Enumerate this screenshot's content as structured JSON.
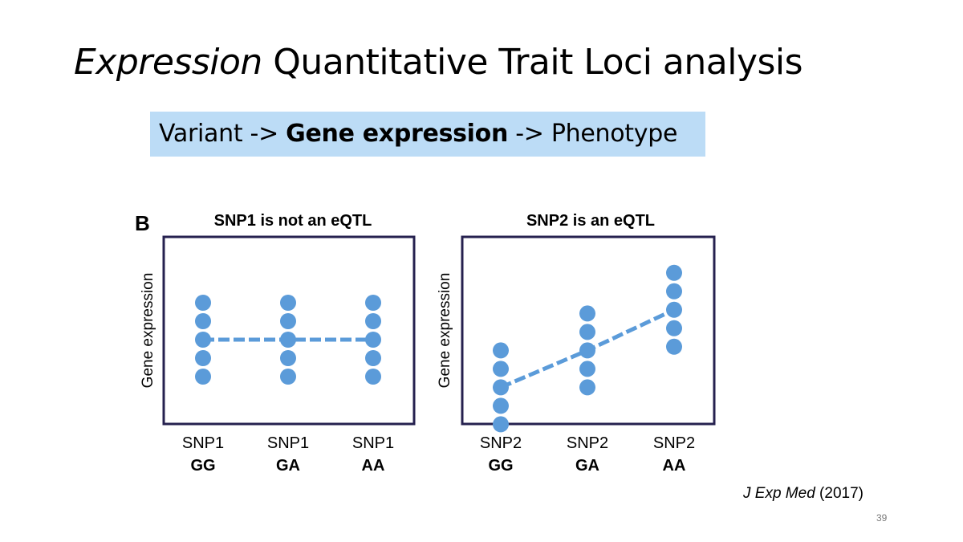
{
  "slide": {
    "title_italic": "Expression",
    "title_rest": " Quantitative Trait Loci analysis",
    "flow": {
      "part1": "Variant -> ",
      "part2": "Gene expression",
      "part3": " -> Phenotype"
    },
    "citation": {
      "journal": "J Exp Med",
      "year": " (2017)"
    },
    "page_number": "39"
  },
  "colors": {
    "dot": "#5b9bd9",
    "frame": "#26214f",
    "flow_bg": "#bcdcf6"
  },
  "figure": {
    "panel_letter": "B",
    "panels": [
      {
        "title": "SNP1 is not an eQTL",
        "ylabel": "Gene expression",
        "categories": [
          {
            "snp": "SNP1",
            "genotype": "GG"
          },
          {
            "snp": "SNP1",
            "genotype": "GA"
          },
          {
            "snp": "SNP1",
            "genotype": "AA"
          }
        ],
        "groups": [
          [
            5,
            4,
            3,
            2,
            1
          ],
          [
            5,
            4,
            3,
            2,
            1
          ],
          [
            5,
            4,
            3,
            2,
            1
          ]
        ],
        "trend": [
          3,
          3,
          3
        ]
      },
      {
        "title": "SNP2 is an eQTL",
        "ylabel": "Gene expression",
        "categories": [
          {
            "snp": "SNP2",
            "genotype": "GG"
          },
          {
            "snp": "SNP2",
            "genotype": "GA"
          },
          {
            "snp": "SNP2",
            "genotype": "AA"
          }
        ],
        "groups": [
          [
            3.2,
            2.2,
            1.2,
            0.2,
            -0.8
          ],
          [
            5.2,
            4.2,
            3.2,
            2.2,
            1.2
          ],
          [
            7.4,
            6.4,
            5.4,
            4.4,
            3.4
          ]
        ],
        "trend": [
          1.2,
          3.2,
          5.4
        ]
      }
    ]
  }
}
